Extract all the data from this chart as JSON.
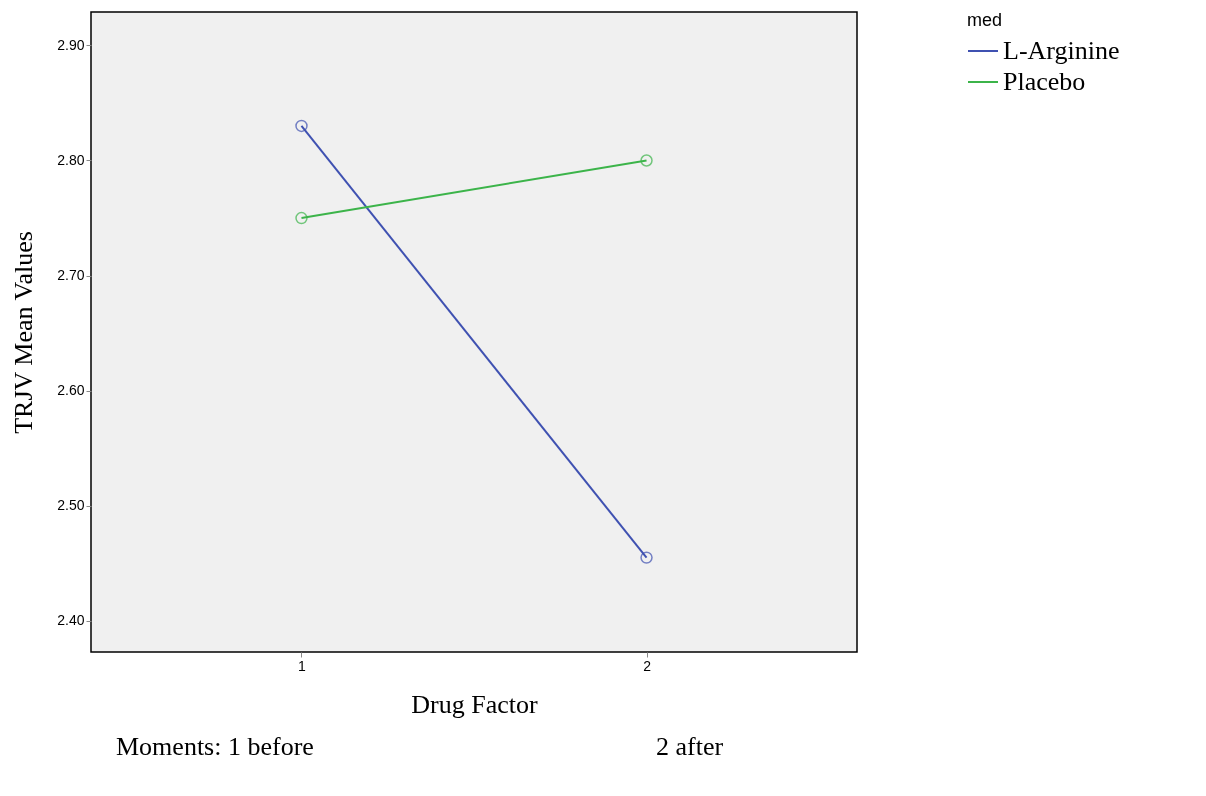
{
  "chart_data": {
    "type": "line",
    "xlabel": "Drug Factor",
    "ylabel": "TRJV Mean Values",
    "legend_title": "med",
    "x": [
      1,
      2
    ],
    "series": [
      {
        "name": "L-Arginine",
        "color": "#3f51b1",
        "values": [
          2.83,
          2.455
        ]
      },
      {
        "name": "Placebo",
        "color": "#3cb44a",
        "values": [
          2.75,
          2.8
        ]
      }
    ],
    "xlim": [
      0.39,
      2.61
    ],
    "xticks": [
      1,
      2
    ],
    "ylim": [
      2.373,
      2.929
    ],
    "yticks": [
      {
        "value": 2.4,
        "label": "2.40"
      },
      {
        "value": 2.5,
        "label": "2.50"
      },
      {
        "value": 2.6,
        "label": "2.60"
      },
      {
        "value": 2.7,
        "label": "2.70"
      },
      {
        "value": 2.8,
        "label": "2.80"
      },
      {
        "value": 2.9,
        "label": "2.90"
      }
    ],
    "marker": "circle",
    "line_style": "solid",
    "grid": false,
    "legend": "top right",
    "annotations": [
      "Moments: 1 before",
      "2 after"
    ]
  }
}
